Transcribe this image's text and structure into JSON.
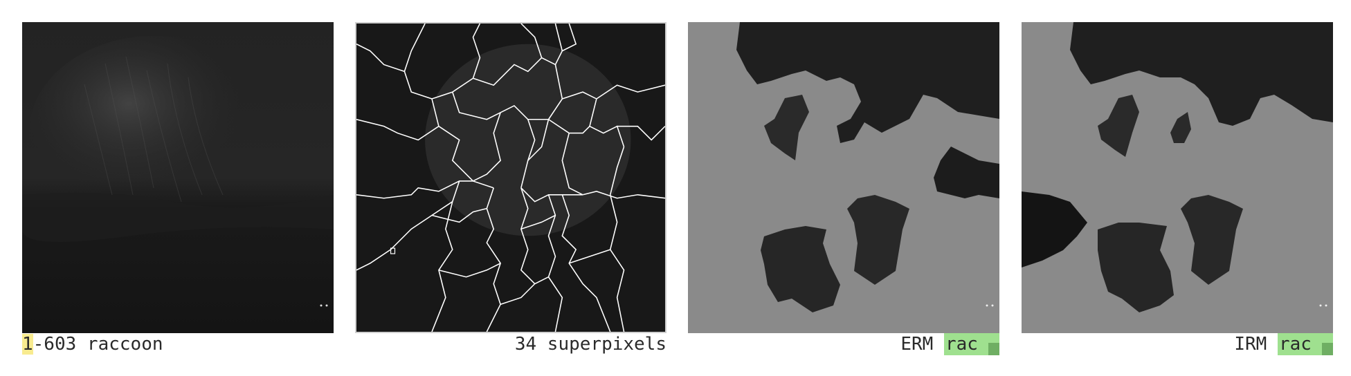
{
  "panels": [
    {
      "id": "original",
      "caption_highlight": "1",
      "caption_rest": "-603 raccoon"
    },
    {
      "id": "superpixels",
      "caption": "34 superpixels"
    },
    {
      "id": "erm",
      "caption_label": "ERM",
      "badge": "rac"
    },
    {
      "id": "irm",
      "caption_label": "IRM",
      "badge": "rac"
    }
  ],
  "colors": {
    "highlight": "#f8eb8f",
    "badge": "#9fe08f",
    "badge_mark": "#6fae63",
    "mask_gray": "#8a8a8a"
  }
}
